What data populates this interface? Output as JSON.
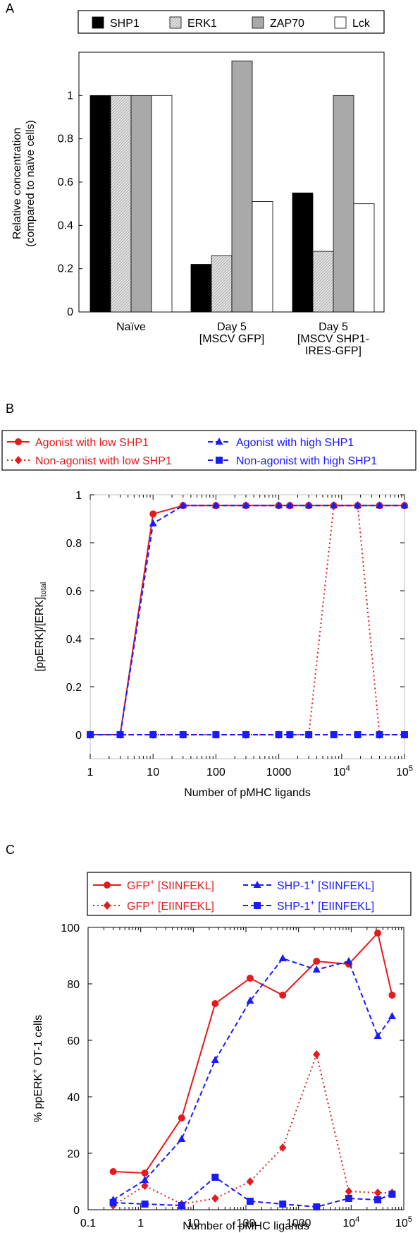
{
  "panels": [
    "A",
    "B",
    "C"
  ],
  "chart_data": [
    {
      "type": "bar",
      "panel": "A",
      "ylabel": [
        "Relative concentration",
        "(compared to naïve cells)"
      ],
      "ylim": [
        0,
        1.2
      ],
      "yticks": [
        0,
        0.2,
        0.4,
        0.6,
        0.8,
        1
      ],
      "yticklabels": [
        "0",
        "0.2",
        "0.4",
        "0.6",
        "0.8",
        "1"
      ],
      "categories": [
        [
          "Naïve"
        ],
        [
          "Day 5",
          "[MSCV GFP]"
        ],
        [
          "Day 5",
          "[MSCV SHP1-",
          "IRES-GFP]"
        ]
      ],
      "series": [
        {
          "name": "SHP1",
          "color": "#000000",
          "pattern": "solid",
          "values": [
            1.0,
            0.22,
            0.55
          ]
        },
        {
          "name": "ERK1",
          "color": "#d9d9d9",
          "pattern": "hatch",
          "values": [
            1.0,
            0.26,
            0.28
          ]
        },
        {
          "name": "ZAP70",
          "color": "#a9a9a9",
          "pattern": "solid",
          "values": [
            1.0,
            1.16,
            1.0
          ]
        },
        {
          "name": "Lck",
          "color": "#ffffff",
          "pattern": "solid",
          "values": [
            1.0,
            0.51,
            0.5
          ]
        }
      ],
      "legend_position": "top"
    },
    {
      "type": "line",
      "panel": "B",
      "xscale": "log",
      "xlim": [
        1,
        100000
      ],
      "ylim": [
        -0.1,
        1
      ],
      "xlabel": "Number of pMHC ligands",
      "ylabel": "[ppERK]/[ERK]total",
      "yticks": [
        0,
        0.2,
        0.4,
        0.6,
        0.8,
        1
      ],
      "yticklabels": [
        "0",
        "0.2",
        "0.4",
        "0.6",
        "0.8",
        "1"
      ],
      "xticks": [
        1,
        10,
        100,
        1000,
        10000,
        100000
      ],
      "xticklabels": [
        "1",
        "10",
        "100",
        "1000",
        "10^4",
        "10^5"
      ],
      "legend_position": "top",
      "series": [
        {
          "name": "Agonist with low SHP1",
          "color": "#e41a1c",
          "dash": "solid",
          "marker": "circle",
          "x": [
            1,
            3,
            10,
            30,
            100,
            300,
            1000,
            1500,
            3000,
            7500,
            18000,
            40000,
            100000
          ],
          "y": [
            0,
            0,
            0.92,
            0.955,
            0.955,
            0.955,
            0.955,
            0.955,
            0.955,
            0.955,
            0.955,
            0.955,
            0.955
          ]
        },
        {
          "name": "Non-agonist with low SHP1",
          "color": "#e41a1c",
          "dash": "dot",
          "marker": "diamond",
          "x": [
            1,
            3,
            10,
            30,
            100,
            300,
            1000,
            1500,
            3000,
            7500,
            18000,
            40000,
            100000
          ],
          "y": [
            0,
            0,
            0,
            0,
            0,
            0,
            0,
            0,
            0,
            0.955,
            0.955,
            0,
            0
          ]
        },
        {
          "name": "Agonist with high SHP1",
          "color": "#1a1aff",
          "dash": "dash",
          "marker": "triangle",
          "x": [
            1,
            3,
            10,
            30,
            100,
            300,
            1000,
            1500,
            3000,
            7500,
            18000,
            40000,
            100000
          ],
          "y": [
            0,
            0,
            0.88,
            0.955,
            0.955,
            0.955,
            0.955,
            0.955,
            0.955,
            0.955,
            0.955,
            0.955,
            0.955
          ]
        },
        {
          "name": "Non-agonist with high SHP1",
          "color": "#1a1aff",
          "dash": "dash",
          "marker": "square",
          "x": [
            1,
            3,
            10,
            30,
            100,
            300,
            1000,
            1500,
            3000,
            7500,
            18000,
            40000,
            100000
          ],
          "y": [
            0,
            0,
            0,
            0,
            0,
            0,
            0,
            0,
            0,
            0,
            0,
            0,
            0
          ]
        }
      ]
    },
    {
      "type": "line",
      "panel": "C",
      "xscale": "log",
      "xlim": [
        0.1,
        100000
      ],
      "ylim": [
        0,
        100
      ],
      "xlabel": "Number of pMHC ligands",
      "ylabel": "% ppERK+ OT-1 cells",
      "yticks": [
        0,
        20,
        40,
        60,
        80,
        100
      ],
      "yticklabels": [
        "0",
        "20",
        "40",
        "60",
        "80",
        "100"
      ],
      "xticks": [
        0.1,
        1,
        10,
        100,
        1000,
        10000,
        100000
      ],
      "xticklabels": [
        "0.1",
        "1",
        "10",
        "100",
        "1000",
        "10^4",
        "10^5"
      ],
      "legend_position": "top",
      "series": [
        {
          "name": "GFP+ [SIINFEKL]",
          "color": "#e41a1c",
          "dash": "solid",
          "marker": "circle",
          "x": [
            0.3,
            1.2,
            6,
            26,
            120,
            500,
            2200,
            9000,
            32000,
            60000
          ],
          "y": [
            13.5,
            13,
            32.5,
            73,
            82,
            76,
            88,
            87,
            98,
            76
          ]
        },
        {
          "name": "GFP+ [EIINFEKL]",
          "color": "#e41a1c",
          "dash": "dot",
          "marker": "diamond",
          "x": [
            0.3,
            1.2,
            6,
            26,
            120,
            500,
            2200,
            9000,
            32000,
            60000
          ],
          "y": [
            1.5,
            8.5,
            2,
            4,
            10,
            22,
            55,
            6.5,
            6,
            6
          ]
        },
        {
          "name": "SHP-1+ [SIINFEKL]",
          "color": "#1a1aff",
          "dash": "dash",
          "marker": "triangle",
          "x": [
            0.3,
            1.2,
            6,
            26,
            120,
            500,
            2200,
            9000,
            32000,
            60000
          ],
          "y": [
            3.5,
            10.5,
            25,
            53,
            74,
            89,
            85,
            88,
            61.5,
            68.5
          ]
        },
        {
          "name": "SHP-1+ [EIINFEKL]",
          "color": "#1a1aff",
          "dash": "dash",
          "marker": "square",
          "x": [
            0.3,
            1.2,
            6,
            26,
            120,
            500,
            2200,
            9000,
            32000,
            60000
          ],
          "y": [
            2.5,
            2,
            1.5,
            11.5,
            3,
            2,
            1,
            4,
            3.5,
            5.5
          ]
        }
      ]
    }
  ]
}
